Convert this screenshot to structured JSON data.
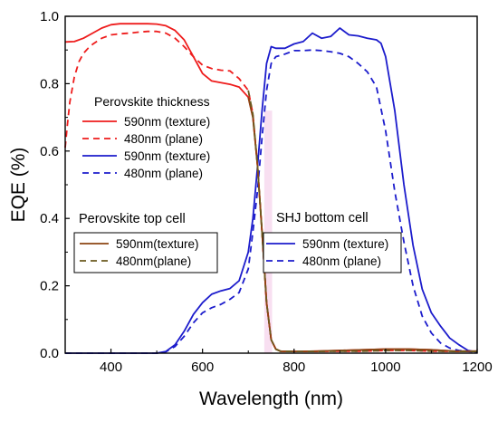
{
  "chart_data": {
    "type": "line",
    "xlabel": "Wavelength (nm)",
    "ylabel": "EQE (%)",
    "xlim": [
      300,
      1200
    ],
    "ylim": [
      0,
      1.0
    ],
    "x_ticks": [
      "400",
      "600",
      "800",
      "1000",
      "1200"
    ],
    "y_ticks": [
      "0.0",
      "0.2",
      "0.4",
      "0.6",
      "0.8",
      "1.0"
    ],
    "grid": false,
    "legend_main": {
      "title": "Perovskite thickness",
      "entries": [
        "590nm (texture)",
        "480nm (plane)",
        "590nm (texture)",
        "480nm (plane)"
      ]
    },
    "annotations": {
      "top_cell": "Perovskite top cell",
      "bottom_cell": "SHJ bottom cell"
    },
    "legend_top": [
      "590nm(texture)",
      "480nm(plane)"
    ],
    "legend_bottom": [
      "590nm (texture)",
      "480nm (plane)"
    ],
    "colors": {
      "red": "#ee1c1c",
      "blue": "#1c1ccc",
      "brown": "#8b4513",
      "olive": "#6b5a1f",
      "highlight": "#f7dcef"
    },
    "series": [
      {
        "color": "red",
        "dash": false,
        "x": [
          300,
          320,
          340,
          360,
          380,
          400,
          420,
          440,
          460,
          480,
          500,
          520,
          540,
          560,
          580,
          600,
          620,
          640,
          660,
          680,
          700,
          710,
          720,
          730,
          740,
          750,
          760,
          770,
          800,
          850,
          900,
          950,
          1000,
          1050,
          1100,
          1150,
          1200
        ],
        "y": [
          0.924,
          0.925,
          0.935,
          0.95,
          0.965,
          0.975,
          0.978,
          0.978,
          0.978,
          0.978,
          0.977,
          0.972,
          0.958,
          0.93,
          0.88,
          0.83,
          0.808,
          0.803,
          0.798,
          0.79,
          0.76,
          0.7,
          0.56,
          0.36,
          0.15,
          0.04,
          0.012,
          0.006,
          0.005,
          0.006,
          0.008,
          0.01,
          0.012,
          0.012,
          0.01,
          0.006,
          0.006
        ]
      },
      {
        "color": "red",
        "dash": true,
        "x": [
          300,
          305,
          310,
          320,
          330,
          340,
          350,
          360,
          380,
          400,
          420,
          440,
          460,
          480,
          500,
          520,
          540,
          560,
          580,
          600,
          620,
          640,
          660,
          680,
          700,
          710,
          720,
          730,
          740,
          750,
          760,
          770,
          800,
          850,
          900,
          950,
          1000,
          1050,
          1100,
          1150,
          1200
        ],
        "y": [
          0.61,
          0.68,
          0.745,
          0.82,
          0.865,
          0.89,
          0.905,
          0.917,
          0.935,
          0.945,
          0.948,
          0.95,
          0.953,
          0.955,
          0.955,
          0.95,
          0.935,
          0.91,
          0.88,
          0.855,
          0.845,
          0.84,
          0.838,
          0.815,
          0.78,
          0.71,
          0.56,
          0.36,
          0.15,
          0.04,
          0.012,
          0.006,
          0.005,
          0.005,
          0.006,
          0.006,
          0.008,
          0.008,
          0.006,
          0.005,
          0.005
        ]
      },
      {
        "color": "blue",
        "dash": false,
        "x": [
          300,
          400,
          500,
          520,
          540,
          560,
          580,
          600,
          620,
          640,
          660,
          680,
          700,
          710,
          720,
          730,
          740,
          750,
          760,
          780,
          800,
          820,
          840,
          860,
          880,
          900,
          920,
          940,
          960,
          980,
          990,
          1000,
          1020,
          1040,
          1060,
          1080,
          1100,
          1120,
          1140,
          1160,
          1180,
          1200
        ],
        "y": [
          0.0,
          0.0,
          0.0,
          0.005,
          0.025,
          0.065,
          0.115,
          0.15,
          0.175,
          0.185,
          0.192,
          0.215,
          0.3,
          0.4,
          0.55,
          0.72,
          0.86,
          0.91,
          0.905,
          0.905,
          0.918,
          0.925,
          0.95,
          0.935,
          0.94,
          0.965,
          0.945,
          0.942,
          0.935,
          0.93,
          0.92,
          0.88,
          0.72,
          0.5,
          0.32,
          0.19,
          0.12,
          0.08,
          0.045,
          0.025,
          0.008,
          0.003
        ]
      },
      {
        "color": "blue",
        "dash": true,
        "x": [
          300,
          400,
          500,
          520,
          540,
          560,
          580,
          600,
          620,
          640,
          660,
          680,
          700,
          710,
          720,
          730,
          740,
          750,
          760,
          780,
          800,
          820,
          840,
          860,
          880,
          900,
          920,
          940,
          960,
          980,
          1000,
          1020,
          1040,
          1060,
          1080,
          1100,
          1120,
          1140,
          1160,
          1180,
          1200
        ],
        "y": [
          0.0,
          0.0,
          0.0,
          0.004,
          0.02,
          0.05,
          0.09,
          0.12,
          0.135,
          0.145,
          0.16,
          0.18,
          0.25,
          0.36,
          0.48,
          0.64,
          0.78,
          0.86,
          0.88,
          0.888,
          0.898,
          0.898,
          0.9,
          0.898,
          0.895,
          0.89,
          0.88,
          0.86,
          0.835,
          0.79,
          0.66,
          0.48,
          0.33,
          0.2,
          0.11,
          0.06,
          0.03,
          0.015,
          0.008,
          0.005,
          0.003
        ]
      },
      {
        "color": "brown",
        "dash": false,
        "x": [
          700,
          710,
          720,
          730,
          740,
          750,
          760,
          770,
          800,
          850,
          900,
          950,
          1000,
          1050,
          1100,
          1150,
          1200
        ],
        "y": [
          0.76,
          0.7,
          0.56,
          0.36,
          0.15,
          0.04,
          0.012,
          0.006,
          0.005,
          0.006,
          0.008,
          0.01,
          0.012,
          0.012,
          0.01,
          0.006,
          0.006
        ]
      },
      {
        "color": "olive",
        "dash": true,
        "x": [
          700,
          710,
          720,
          730,
          740,
          750,
          760,
          770,
          800,
          850,
          900,
          950,
          1000,
          1050,
          1100,
          1150,
          1200
        ],
        "y": [
          0.78,
          0.71,
          0.56,
          0.36,
          0.15,
          0.04,
          0.012,
          0.006,
          0.005,
          0.005,
          0.006,
          0.006,
          0.008,
          0.008,
          0.006,
          0.005,
          0.005
        ]
      }
    ],
    "highlight_band": [
      735,
      752
    ]
  }
}
